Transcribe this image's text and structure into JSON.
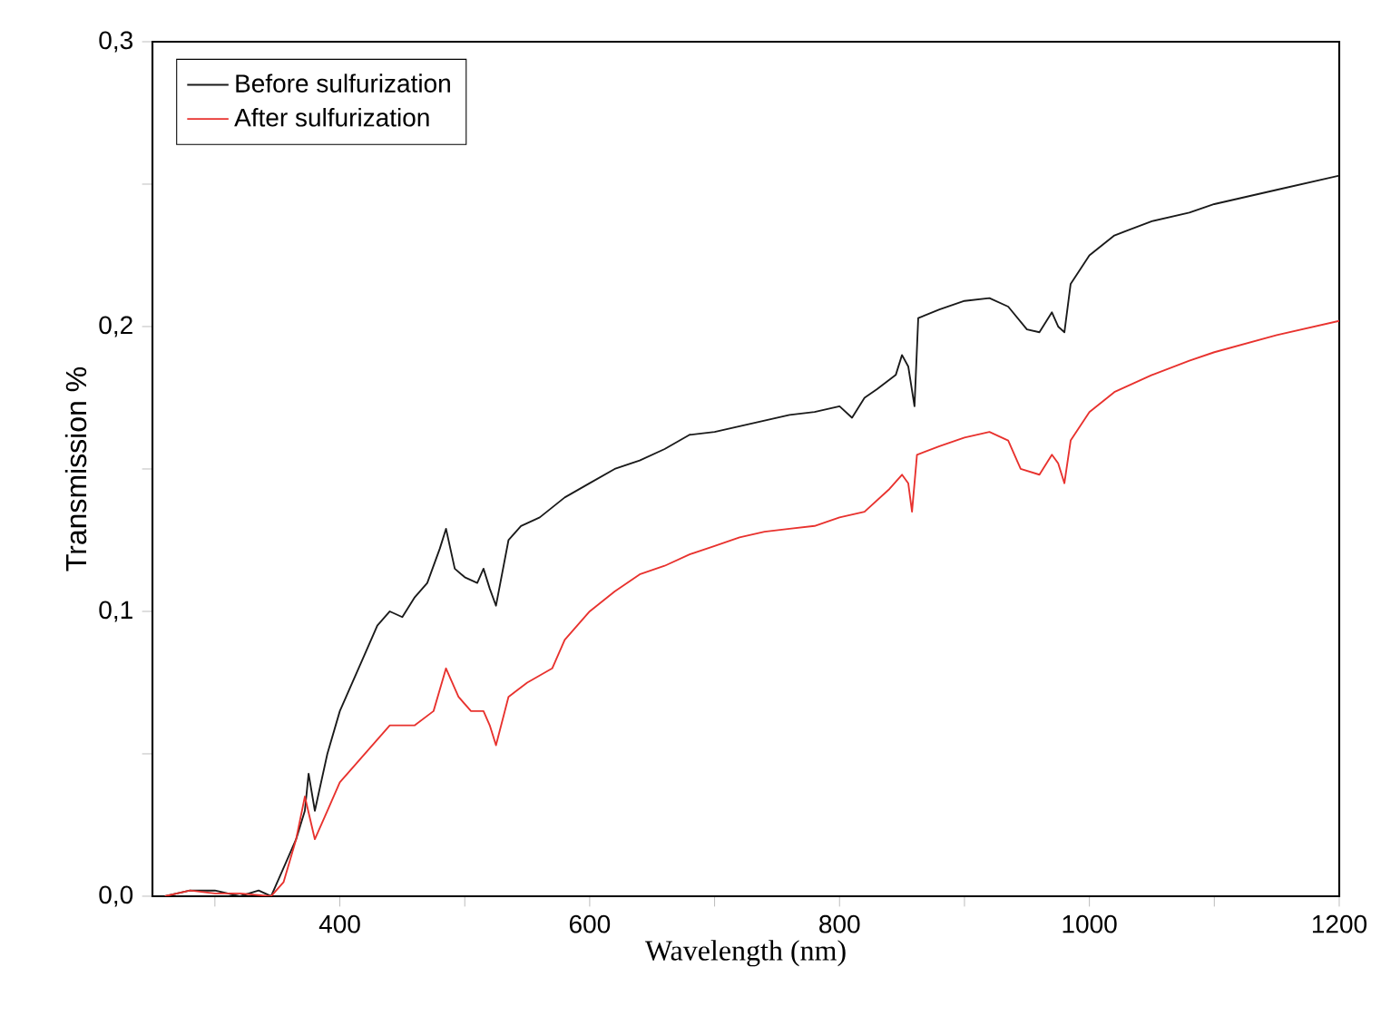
{
  "chart_data": {
    "type": "line",
    "xlabel": "Wavelength (nm)",
    "ylabel": "Transmission %",
    "xlim": [
      250,
      1200
    ],
    "ylim": [
      0,
      0.3
    ],
    "xticks": [
      {
        "value": 300,
        "label": null
      },
      400,
      {
        "value": 500,
        "label": null
      },
      600,
      {
        "value": 700,
        "label": null
      },
      800,
      {
        "value": 900,
        "label": null
      },
      1000,
      {
        "value": 1100,
        "label": null
      },
      1200
    ],
    "yticks": [
      {
        "value": 0,
        "label": "0,0"
      },
      {
        "value": 0.05,
        "label": null
      },
      {
        "value": 0.1,
        "label": "0,1"
      },
      {
        "value": 0.15,
        "label": null
      },
      {
        "value": 0.2,
        "label": "0,2"
      },
      {
        "value": 0.25,
        "label": null
      },
      {
        "value": 0.3,
        "label": "0,3"
      }
    ],
    "legend": "top left",
    "grid": false,
    "marker": "none",
    "line_style": "solid",
    "series": [
      {
        "name": "Before sulfurization",
        "color": "#1a1a1a",
        "x": [
          260,
          280,
          300,
          320,
          335,
          345,
          355,
          365,
          372,
          375,
          380,
          390,
          400,
          410,
          420,
          430,
          440,
          450,
          460,
          470,
          480,
          485,
          492,
          500,
          510,
          515,
          520,
          525,
          535,
          545,
          560,
          580,
          600,
          620,
          640,
          660,
          680,
          700,
          720,
          740,
          760,
          780,
          800,
          810,
          820,
          830,
          845,
          850,
          855,
          860,
          863,
          880,
          900,
          920,
          935,
          950,
          960,
          970,
          975,
          980,
          985,
          1000,
          1020,
          1050,
          1080,
          1100,
          1150,
          1200
        ],
        "values": [
          0.0,
          0.002,
          0.002,
          0.0,
          0.002,
          0.0,
          0.01,
          0.02,
          0.03,
          0.043,
          0.03,
          0.05,
          0.065,
          0.075,
          0.085,
          0.095,
          0.1,
          0.098,
          0.105,
          0.11,
          0.122,
          0.129,
          0.115,
          0.112,
          0.11,
          0.115,
          0.108,
          0.102,
          0.125,
          0.13,
          0.133,
          0.14,
          0.145,
          0.15,
          0.153,
          0.157,
          0.162,
          0.163,
          0.165,
          0.167,
          0.169,
          0.17,
          0.172,
          0.168,
          0.175,
          0.178,
          0.183,
          0.19,
          0.186,
          0.172,
          0.203,
          0.206,
          0.209,
          0.21,
          0.207,
          0.199,
          0.198,
          0.205,
          0.2,
          0.198,
          0.215,
          0.225,
          0.232,
          0.237,
          0.24,
          0.243,
          0.248,
          0.253
        ]
      },
      {
        "name": "After sulfurization",
        "color": "#e8322e",
        "x": [
          260,
          280,
          300,
          320,
          345,
          355,
          365,
          372,
          380,
          390,
          400,
          420,
          440,
          460,
          475,
          485,
          495,
          505,
          515,
          520,
          525,
          535,
          550,
          570,
          580,
          600,
          620,
          640,
          660,
          680,
          700,
          720,
          740,
          760,
          780,
          800,
          820,
          840,
          850,
          855,
          858,
          862,
          880,
          900,
          920,
          935,
          945,
          960,
          970,
          975,
          980,
          985,
          1000,
          1020,
          1050,
          1080,
          1100,
          1150,
          1200
        ],
        "values": [
          0.0,
          0.002,
          0.001,
          0.001,
          0.0,
          0.005,
          0.02,
          0.035,
          0.02,
          0.03,
          0.04,
          0.05,
          0.06,
          0.06,
          0.065,
          0.08,
          0.07,
          0.065,
          0.065,
          0.06,
          0.053,
          0.07,
          0.075,
          0.08,
          0.09,
          0.1,
          0.107,
          0.113,
          0.116,
          0.12,
          0.123,
          0.126,
          0.128,
          0.129,
          0.13,
          0.133,
          0.135,
          0.143,
          0.148,
          0.145,
          0.135,
          0.155,
          0.158,
          0.161,
          0.163,
          0.16,
          0.15,
          0.148,
          0.155,
          0.152,
          0.145,
          0.16,
          0.17,
          0.177,
          0.183,
          0.188,
          0.191,
          0.197,
          0.202
        ]
      }
    ]
  }
}
